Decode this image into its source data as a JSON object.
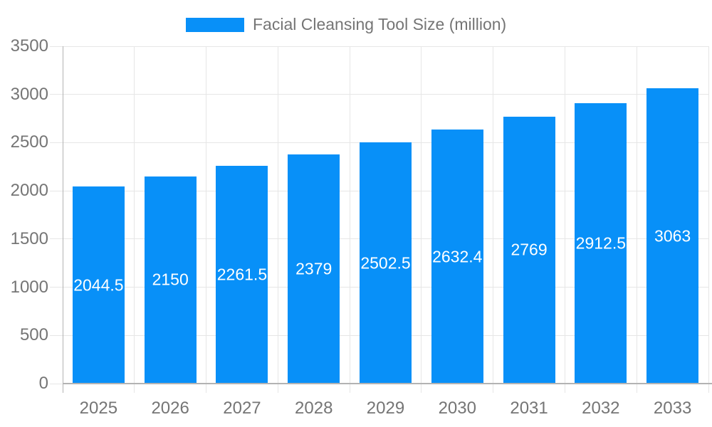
{
  "legend": {
    "label": "Facial Cleansing Tool Size (million)"
  },
  "chart_data": {
    "type": "bar",
    "title": "",
    "xlabel": "",
    "ylabel": "",
    "categories": [
      "2025",
      "2026",
      "2027",
      "2028",
      "2029",
      "2030",
      "2031",
      "2032",
      "2033"
    ],
    "series": [
      {
        "name": "Facial Cleansing Tool Size (million)",
        "values": [
          2044.5,
          2150,
          2261.5,
          2379,
          2502.5,
          2632.4,
          2769,
          2912.5,
          3063
        ],
        "data_labels": [
          "2044.5",
          "2150",
          "2261.5",
          "2379",
          "2502.5",
          "2632.4",
          "2769",
          "2912.5",
          "3063"
        ]
      }
    ],
    "ylim": [
      0,
      3500
    ],
    "yticks": [
      0,
      500,
      1000,
      1500,
      2000,
      2500,
      3000,
      3500
    ],
    "grid": true,
    "legend_position": "top-center",
    "colors": {
      "bar": "#0890f8",
      "value_label": "#ffffff",
      "axis_text": "#757575",
      "grid_line": "#e6e6e6",
      "axis_line": "#b3b3b3",
      "background": "#ffffff"
    }
  }
}
